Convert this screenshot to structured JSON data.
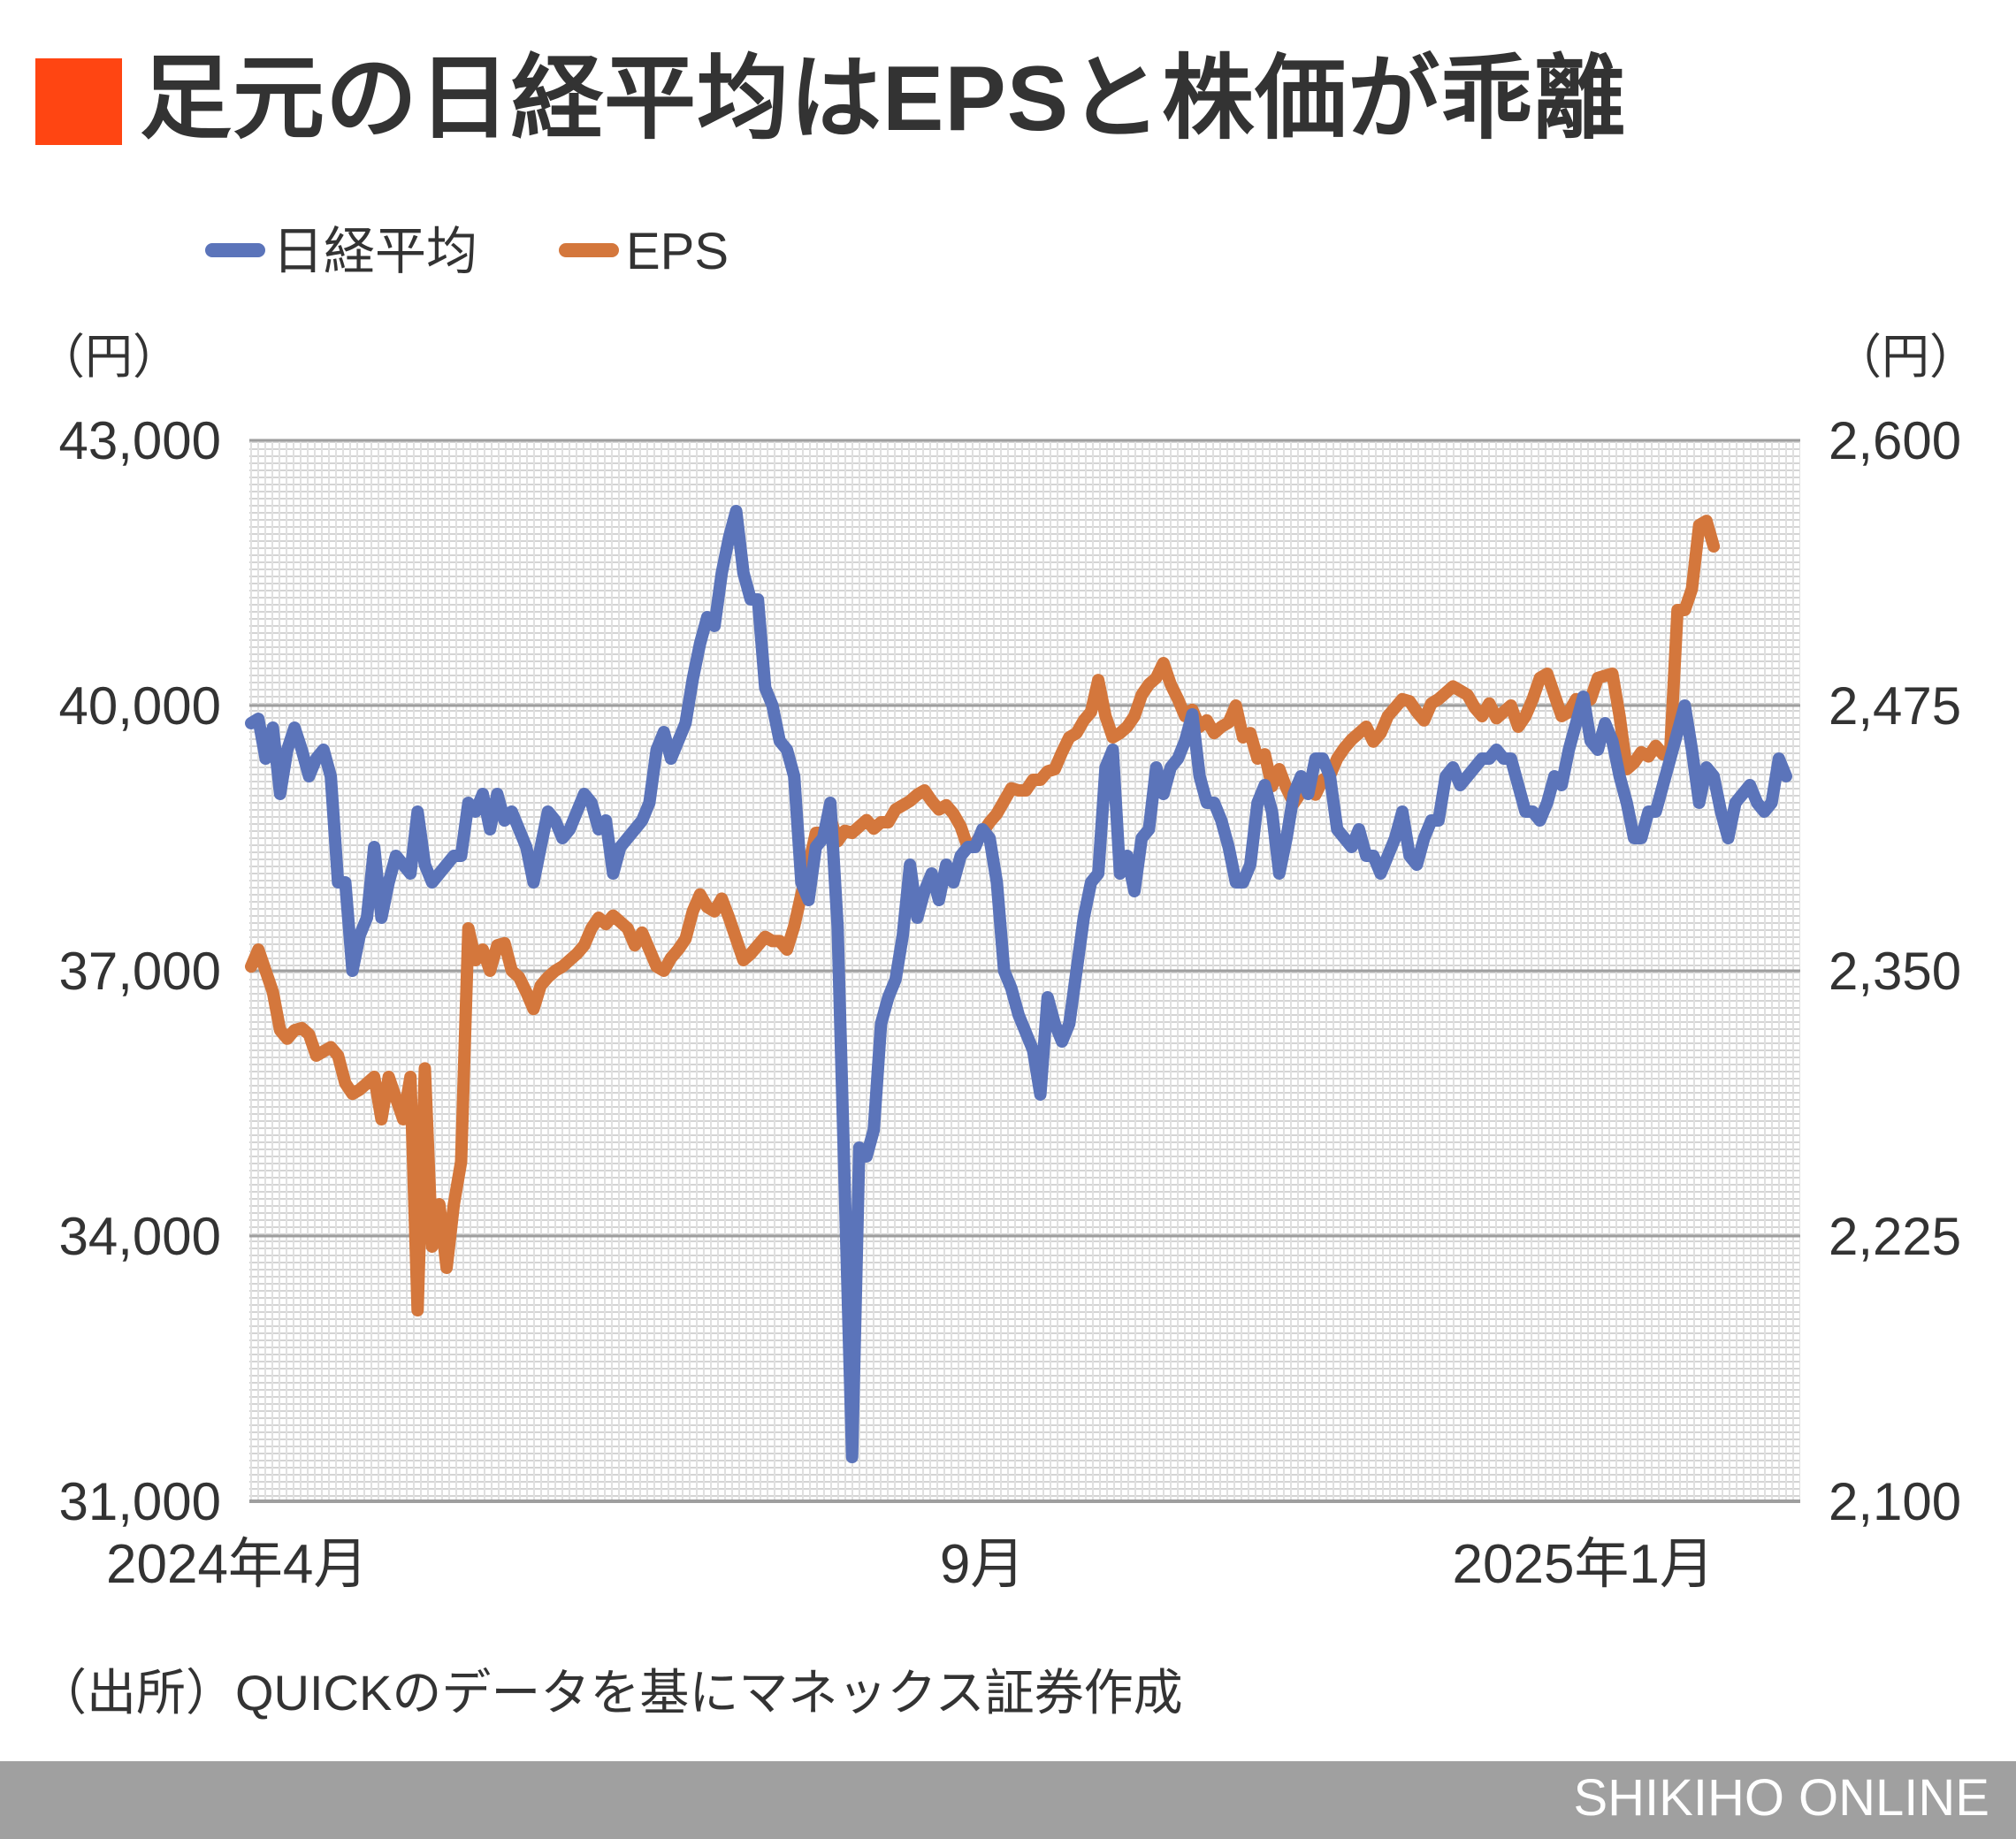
{
  "title": "足元の日経平均はEPSと株価が乖離",
  "source_note": "（出所）QUICKのデータを基にマネックス証券作成",
  "footer_brand": "SHIKIHO ONLINE",
  "colors": {
    "title_marker": "#FF4512",
    "nikkei": "#5B74BA",
    "eps": "#D4773C",
    "footer_bg": "#A0A0A0",
    "gridline": "#9E9E9E",
    "text": "#333333"
  },
  "chart_data": {
    "type": "line",
    "legend_position": "top-left",
    "y_unit_left": "（円）",
    "y_unit_right": "（円）",
    "y_left_ticks": [
      "43,000",
      "40,000",
      "37,000",
      "34,000",
      "31,000"
    ],
    "y_right_ticks": [
      "2,600",
      "2,475",
      "2,350",
      "2,225",
      "2,100"
    ],
    "y_left_range": [
      31000,
      43000
    ],
    "y_right_range": [
      2100,
      2600
    ],
    "x_tick_labels": [
      {
        "label": "2024年4月",
        "index": 0
      },
      {
        "label": "9月",
        "index": 101
      },
      {
        "label": "2025年1月",
        "index": 184
      }
    ],
    "grid": true,
    "series": [
      {
        "name": "日経平均",
        "axis": "left",
        "values": [
          39800,
          39850,
          39400,
          39750,
          39000,
          39500,
          39750,
          39500,
          39200,
          39400,
          39500,
          39200,
          38000,
          38000,
          37000,
          37400,
          37600,
          38400,
          37600,
          38000,
          38300,
          38200,
          38100,
          38800,
          38200,
          38000,
          38100,
          38200,
          38300,
          38300,
          38900,
          38800,
          39000,
          38600,
          39000,
          38700,
          38800,
          38600,
          38400,
          38000,
          38400,
          38800,
          38700,
          38500,
          38600,
          38800,
          39000,
          38900,
          38600,
          38700,
          38100,
          38400,
          38500,
          38600,
          38700,
          38900,
          39500,
          39700,
          39400,
          39600,
          39800,
          40300,
          40700,
          41000,
          40900,
          41500,
          41900,
          42200,
          41500,
          41200,
          41200,
          40200,
          40000,
          39600,
          39500,
          39200,
          38000,
          37800,
          38400,
          38500,
          38900,
          37500,
          34500,
          31500,
          35000,
          34900,
          35200,
          36400,
          36700,
          36900,
          37400,
          38200,
          37600,
          37900,
          38100,
          37800,
          38200,
          38000,
          38300,
          38400,
          38400,
          38600,
          38500,
          38000,
          37000,
          36800,
          36500,
          36300,
          36100,
          35600,
          36700,
          36400,
          36200,
          36400,
          37000,
          37600,
          38000,
          38100,
          39300,
          39500,
          38100,
          38300,
          37900,
          38500,
          38600,
          39300,
          39000,
          39300,
          39400,
          39600,
          39900,
          39200,
          38900,
          38900,
          38700,
          38400,
          38000,
          38000,
          38200,
          38900,
          39100,
          38800,
          38100,
          38500,
          39000,
          39200,
          39000,
          39400,
          39400,
          39200,
          38600,
          38500,
          38400,
          38600,
          38300,
          38300,
          38100,
          38300,
          38500,
          38800,
          38300,
          38200,
          38500,
          38700,
          38700,
          39200,
          39300,
          39100,
          39200,
          39300,
          39400,
          39400,
          39500,
          39400,
          39400,
          39100,
          38800,
          38800,
          38700,
          38900,
          39200,
          39100,
          39500,
          39800,
          40100,
          39600,
          39500,
          39800,
          39600,
          39200,
          38900,
          38500,
          38500,
          38800,
          38800,
          39100,
          39400,
          39700,
          40000,
          39500,
          38900,
          39300,
          39200,
          38800,
          38500,
          38900,
          39000,
          39100,
          38900,
          38800,
          38900,
          39400,
          39200
        ]
      },
      {
        "name": "EPS",
        "axis": "right",
        "values": [
          2352,
          2360,
          2350,
          2340,
          2322,
          2318,
          2322,
          2323,
          2320,
          2310,
          2312,
          2314,
          2310,
          2297,
          2292,
          2294,
          2297,
          2300,
          2280,
          2300,
          2290,
          2280,
          2300,
          2190,
          2304,
          2220,
          2240,
          2210,
          2240,
          2260,
          2370,
          2355,
          2360,
          2350,
          2362,
          2363,
          2350,
          2347,
          2340,
          2332,
          2343,
          2347,
          2350,
          2352,
          2355,
          2358,
          2362,
          2370,
          2375,
          2372,
          2376,
          2373,
          2370,
          2362,
          2368,
          2360,
          2352,
          2350,
          2356,
          2360,
          2365,
          2378,
          2386,
          2380,
          2378,
          2384,
          2375,
          2365,
          2355,
          2358,
          2362,
          2366,
          2364,
          2364,
          2360,
          2371,
          2386,
          2400,
          2415,
          2415,
          2422,
          2411,
          2416,
          2415,
          2418,
          2421,
          2417,
          2420,
          2420,
          2426,
          2428,
          2430,
          2433,
          2435,
          2430,
          2426,
          2428,
          2424,
          2418,
          2408,
          2410,
          2415,
          2420,
          2424,
          2430,
          2436,
          2435,
          2435,
          2440,
          2440,
          2444,
          2445,
          2453,
          2460,
          2462,
          2468,
          2472,
          2487,
          2470,
          2460,
          2462,
          2465,
          2470,
          2480,
          2485,
          2488,
          2495,
          2485,
          2478,
          2470,
          2473,
          2465,
          2468,
          2462,
          2465,
          2467,
          2475,
          2460,
          2462,
          2450,
          2452,
          2437,
          2445,
          2436,
          2429,
          2434,
          2438,
          2433,
          2440,
          2442,
          2450,
          2455,
          2459,
          2462,
          2465,
          2458,
          2462,
          2470,
          2474,
          2478,
          2477,
          2472,
          2468,
          2476,
          2478,
          2481,
          2484,
          2482,
          2480,
          2474,
          2470,
          2476,
          2469,
          2472,
          2475,
          2465,
          2470,
          2478,
          2488,
          2490,
          2480,
          2470,
          2472,
          2478,
          2476,
          2478,
          2488,
          2489,
          2490,
          2470,
          2445,
          2448,
          2453,
          2451,
          2456,
          2452,
          2454,
          2520,
          2520,
          2530,
          2560,
          2562,
          2550
        ]
      }
    ]
  }
}
